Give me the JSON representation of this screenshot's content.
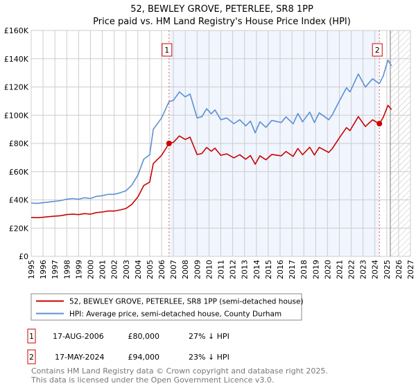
{
  "chart_data": {
    "type": "line",
    "title": "52, BEWLEY GROVE, PETERLEE, SR8 1PP",
    "subtitle": "Price paid vs. HM Land Registry's House Price Index (HPI)",
    "xlim": [
      1995,
      2027
    ],
    "ylim": [
      0,
      160000
    ],
    "x_ticks": [
      "1995",
      "1996",
      "1997",
      "1998",
      "1999",
      "2000",
      "2001",
      "2002",
      "2003",
      "2004",
      "2005",
      "2006",
      "2007",
      "2008",
      "2009",
      "2010",
      "2011",
      "2012",
      "2013",
      "2014",
      "2015",
      "2016",
      "2017",
      "2018",
      "2019",
      "2020",
      "2021",
      "2022",
      "2023",
      "2024",
      "2025",
      "2026",
      "2027"
    ],
    "y_ticks": [
      {
        "v": 0,
        "label": "£0"
      },
      {
        "v": 20000,
        "label": "£20K"
      },
      {
        "v": 40000,
        "label": "£40K"
      },
      {
        "v": 60000,
        "label": "£60K"
      },
      {
        "v": 80000,
        "label": "£80K"
      },
      {
        "v": 100000,
        "label": "£100K"
      },
      {
        "v": 120000,
        "label": "£120K"
      },
      {
        "v": 140000,
        "label": "£140K"
      },
      {
        "v": 160000,
        "label": "£160K"
      }
    ],
    "grid": true,
    "shaded_period": [
      2006.63,
      2024.38
    ],
    "forecast_hatch_from": 2025.3,
    "series": [
      {
        "name": "52, BEWLEY GROVE, PETERLEE, SR8 1PP (semi-detached house)",
        "color": "#cc0000",
        "x": [
          1995.0,
          1995.5,
          1996.0,
          1996.5,
          1997.0,
          1997.5,
          1998.0,
          1998.5,
          1999.0,
          1999.5,
          2000.0,
          2000.5,
          2001.0,
          2001.5,
          2002.0,
          2002.5,
          2003.0,
          2003.5,
          2004.0,
          2004.5,
          2005.0,
          2005.3,
          2006.0,
          2006.63,
          2007.0,
          2007.5,
          2008.0,
          2008.4,
          2009.0,
          2009.4,
          2009.8,
          2010.2,
          2010.5,
          2011.0,
          2011.5,
          2012.1,
          2012.6,
          2013.1,
          2013.5,
          2013.9,
          2014.3,
          2014.8,
          2015.3,
          2016.1,
          2016.5,
          2017.1,
          2017.5,
          2017.9,
          2018.5,
          2018.9,
          2019.3,
          2020.1,
          2020.4,
          2021.0,
          2021.6,
          2021.9,
          2022.6,
          2023.2,
          2023.8,
          2024.38,
          2024.7,
          2025.1,
          2025.4
        ],
        "y": [
          27.6,
          27.4,
          27.7,
          28.1,
          28.5,
          28.8,
          29.6,
          29.9,
          29.6,
          30.3,
          29.9,
          31.0,
          31.4,
          32.1,
          32.1,
          32.9,
          33.9,
          36.9,
          42.0,
          50.2,
          52.6,
          65.7,
          71.5,
          80.0,
          80.8,
          85.3,
          82.8,
          84.4,
          72.1,
          72.9,
          77.1,
          74.5,
          76.6,
          71.6,
          72.6,
          69.8,
          72.0,
          68.8,
          71.4,
          65.3,
          71.2,
          68.4,
          72.2,
          71.2,
          74.3,
          70.8,
          76.4,
          72.0,
          77.3,
          71.8,
          77.2,
          73.6,
          76.3,
          83.9,
          91.2,
          89.1,
          99.0,
          92.0,
          96.7,
          94.0,
          98.4,
          107.0,
          104.0
        ],
        "y_unit": "thousand GBP"
      },
      {
        "name": "HPI: Average price, semi-detached house, County Durham",
        "color": "#5b8fd4",
        "x": [
          1995.0,
          1995.5,
          1996.0,
          1996.5,
          1997.0,
          1997.5,
          1998.0,
          1998.5,
          1999.0,
          1999.5,
          2000.0,
          2000.5,
          2001.0,
          2001.5,
          2002.0,
          2002.5,
          2003.0,
          2003.5,
          2004.0,
          2004.5,
          2005.0,
          2005.3,
          2006.0,
          2006.63,
          2007.0,
          2007.5,
          2008.0,
          2008.4,
          2009.0,
          2009.4,
          2009.8,
          2010.2,
          2010.5,
          2011.0,
          2011.5,
          2012.1,
          2012.6,
          2013.1,
          2013.5,
          2013.9,
          2014.3,
          2014.8,
          2015.3,
          2016.1,
          2016.5,
          2017.1,
          2017.5,
          2017.9,
          2018.5,
          2018.9,
          2019.3,
          2020.1,
          2020.4,
          2021.0,
          2021.6,
          2021.9,
          2022.6,
          2023.2,
          2023.8,
          2024.38,
          2024.7,
          2025.1,
          2025.4
        ],
        "y": [
          37.8,
          37.5,
          38,
          38.5,
          39,
          39.5,
          40.5,
          41,
          40.5,
          41.5,
          41,
          42.5,
          43,
          44,
          44,
          45,
          46.5,
          50.6,
          57.5,
          68.8,
          72,
          90,
          98,
          109.6,
          110.5,
          116.5,
          113,
          115,
          98,
          99,
          104.6,
          101,
          103.7,
          96.8,
          98,
          94,
          96.8,
          92.4,
          95.8,
          87.5,
          95.3,
          91.4,
          96.3,
          94.8,
          98.8,
          93.9,
          101.2,
          95.3,
          102.2,
          94.8,
          101.7,
          96.8,
          100.2,
          110,
          119.4,
          116.5,
          129.2,
          119.9,
          125.8,
          122.3,
          127.8,
          139,
          135
        ],
        "y_unit": "thousand GBP"
      }
    ],
    "sales": [
      {
        "id": "1",
        "x": 2006.63,
        "price": 80000,
        "date": "17-AUG-2006",
        "price_label": "£80,000",
        "hpi_diff": "27% ↓ HPI"
      },
      {
        "id": "2",
        "x": 2024.38,
        "price": 94000,
        "date": "17-MAY-2024",
        "price_label": "£94,000",
        "hpi_diff": "23% ↓ HPI"
      }
    ],
    "legend_position": "below"
  },
  "footer": {
    "line1": "Contains HM Land Registry data © Crown copyright and database right 2025.",
    "line2": "This data is licensed under the Open Government Licence v3.0."
  }
}
